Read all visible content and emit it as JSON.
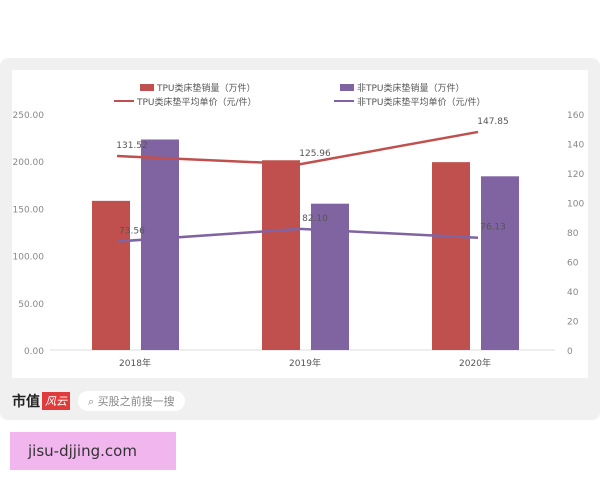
{
  "chart_data": {
    "type": "bar+line",
    "categories": [
      "2018年",
      "2019年",
      "2020年"
    ],
    "series": [
      {
        "name": "TPU类床垫销量（万件）",
        "kind": "bar",
        "axis": "left",
        "color": "#c0504d",
        "values": [
          158,
          201,
          199
        ]
      },
      {
        "name": "非TPU类床垫销量（万件）",
        "kind": "bar",
        "axis": "left",
        "color": "#8064a2",
        "values": [
          223,
          155,
          184
        ]
      },
      {
        "name": "TPU类床垫平均单价（元/件）",
        "kind": "line",
        "axis": "right",
        "color": "#c0504d",
        "values": [
          131.52,
          125.96,
          147.85
        ],
        "labels": [
          "131.52",
          "125.96",
          "147.85"
        ]
      },
      {
        "name": "非TPU类床垫平均单价（元/件）",
        "kind": "line",
        "axis": "right",
        "color": "#8064a2",
        "values": [
          73.56,
          82.1,
          76.13
        ],
        "labels": [
          "73.56",
          "82.10",
          "76.13"
        ]
      }
    ],
    "left_axis": {
      "ylim": [
        0,
        250
      ],
      "ticks": [
        "0.00",
        "50.00",
        "100.00",
        "150.00",
        "200.00",
        "250.00"
      ]
    },
    "right_axis": {
      "ylim": [
        0,
        160
      ],
      "ticks": [
        "0",
        "20",
        "40",
        "60",
        "80",
        "100",
        "120",
        "140",
        "160"
      ]
    },
    "legend": "top",
    "grid": false
  },
  "footer": {
    "brand": "市值",
    "logo": "风云",
    "search_placeholder": "买股之前搜一搜"
  },
  "site": "jisu-djjing.com"
}
